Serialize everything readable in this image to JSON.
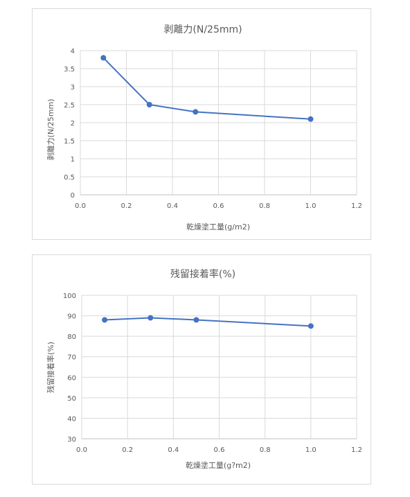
{
  "chart_data": [
    {
      "type": "line",
      "title": "剥離力(N/25mm)",
      "xlabel": "乾燥塗工量(g/m2)",
      "ylabel": "剥離力(N/25mm)",
      "xlim": [
        0.0,
        1.2
      ],
      "ylim": [
        0,
        4
      ],
      "xticks": [
        "0.0",
        "0.2",
        "0.4",
        "0.6",
        "0.8",
        "1.0",
        "1.2"
      ],
      "xtick_values": [
        0.0,
        0.2,
        0.4,
        0.6,
        0.8,
        1.0,
        1.2
      ],
      "yticks": [
        "0",
        "0.5",
        "1",
        "1.5",
        "2",
        "2.5",
        "3",
        "3.5",
        "4"
      ],
      "ytick_values": [
        0,
        0.5,
        1,
        1.5,
        2,
        2.5,
        3,
        3.5,
        4
      ],
      "grid": true,
      "series": [
        {
          "x": [
            0.1,
            0.3,
            0.5,
            1.0
          ],
          "values": [
            3.8,
            2.5,
            2.3,
            2.1
          ],
          "color": "#4472c4"
        }
      ]
    },
    {
      "type": "line",
      "title": "残留接着率(%)",
      "xlabel": "乾燥塗工量(g?m2)",
      "ylabel": "残留接着率(%)",
      "xlim": [
        0.0,
        1.2
      ],
      "ylim": [
        30,
        100
      ],
      "xticks": [
        "0.0",
        "0.2",
        "0.4",
        "0.6",
        "0.8",
        "1.0",
        "1.2"
      ],
      "xtick_values": [
        0.0,
        0.2,
        0.4,
        0.6,
        0.8,
        1.0,
        1.2
      ],
      "yticks": [
        "30",
        "40",
        "50",
        "60",
        "70",
        "80",
        "90",
        "100"
      ],
      "ytick_values": [
        30,
        40,
        50,
        60,
        70,
        80,
        90,
        100
      ],
      "grid": true,
      "series": [
        {
          "x": [
            0.1,
            0.3,
            0.5,
            1.0
          ],
          "values": [
            88,
            89,
            88,
            85
          ],
          "color": "#4472c4"
        }
      ]
    }
  ]
}
